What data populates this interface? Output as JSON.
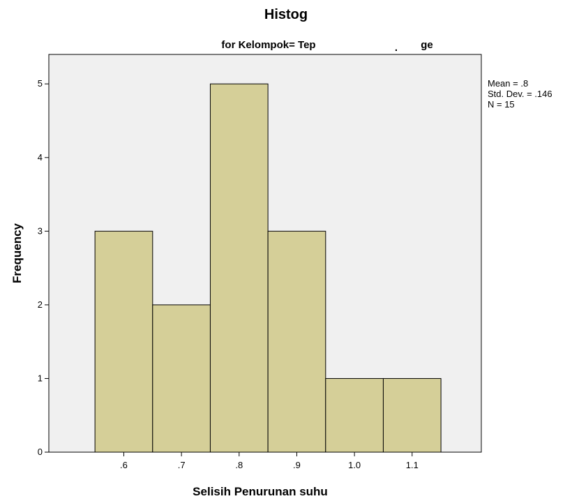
{
  "chart_data": {
    "type": "bar",
    "title": "Histog",
    "subtitle": "for Kelompok= Tep",
    "subtitle_fragments": [
      ".",
      "ge"
    ],
    "xlabel": "Selisih Penurunan suhu",
    "ylabel": "Frequency",
    "categories": [
      ".6",
      ".7",
      ".8",
      ".9",
      "1.0",
      "1.1"
    ],
    "bin_centers": [
      0.6,
      0.7,
      0.8,
      0.9,
      1.0,
      1.1
    ],
    "bin_width": 0.1,
    "values": [
      3,
      2,
      5,
      3,
      1,
      1
    ],
    "xlim": [
      0.47,
      1.22
    ],
    "ylim": [
      0,
      5.4
    ],
    "yticks": [
      0,
      1,
      2,
      3,
      4,
      5
    ],
    "grid": false,
    "stats": {
      "mean": "Mean = .8",
      "std": "Std. Dev. = .146",
      "n": "N = 15"
    },
    "colors": {
      "bar_fill": "#d5cf98",
      "bar_stroke": "#000000",
      "plot_bg": "#f0f0f0"
    }
  }
}
